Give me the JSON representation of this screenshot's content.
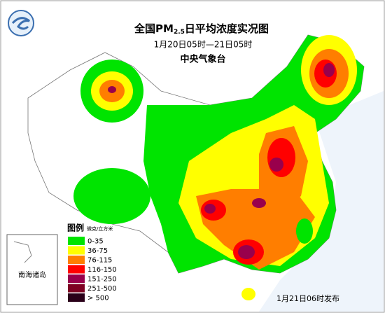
{
  "header": {
    "title_prefix": "全国PM",
    "title_subscript": "2.5",
    "title_suffix": "日平均浓度实况图",
    "period": "1月20日05时—21日05时",
    "issuer": "中央气象台"
  },
  "legend": {
    "title": "图例",
    "unit": "微克/立方米",
    "items": [
      {
        "label": "0-35",
        "color": "#00e400"
      },
      {
        "label": "36-75",
        "color": "#ffff00"
      },
      {
        "label": "76-115",
        "color": "#ff7e00"
      },
      {
        "label": "116-150",
        "color": "#ff0000"
      },
      {
        "label": "151-250",
        "color": "#99004c"
      },
      {
        "label": "251-500",
        "color": "#7e0023"
      },
      {
        "label": "> 500",
        "color": "#2a0019"
      }
    ]
  },
  "inset": {
    "label": "南海诸岛"
  },
  "footer": {
    "release": "1月21日06时发布"
  }
}
